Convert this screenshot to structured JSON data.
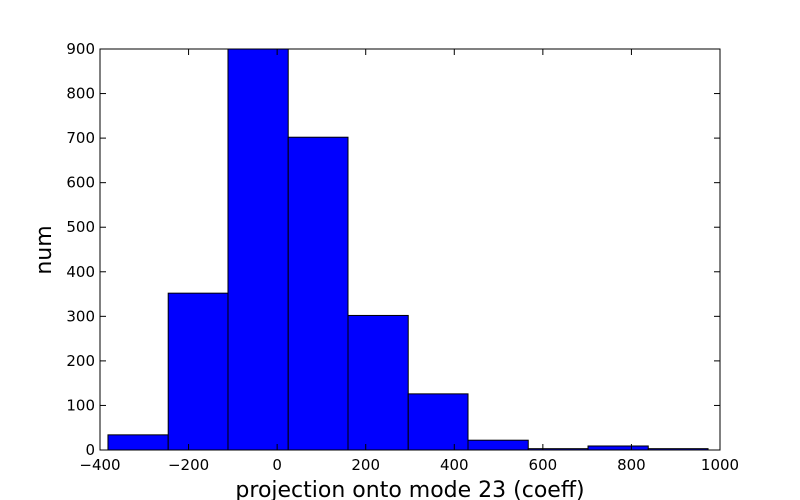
{
  "chart_data": {
    "type": "bar",
    "title": "",
    "xlabel": "projection onto mode 23 (coeff)",
    "ylabel": "num",
    "xlim": [
      -400,
      1000
    ],
    "ylim": [
      0,
      900
    ],
    "xticks": [
      -400,
      -200,
      0,
      200,
      400,
      600,
      800,
      1000
    ],
    "yticks": [
      0,
      100,
      200,
      300,
      400,
      500,
      600,
      700,
      800,
      900
    ],
    "bar_color": "#0000ff",
    "edge_color": "#000000",
    "grid": false,
    "bins": [
      {
        "x0": -382,
        "x1": -246,
        "count": 34
      },
      {
        "x0": -246,
        "x1": -111,
        "count": 352
      },
      {
        "x0": -111,
        "x1": 25,
        "count": 900
      },
      {
        "x0": 25,
        "x1": 160,
        "count": 702
      },
      {
        "x0": 160,
        "x1": 296,
        "count": 302
      },
      {
        "x0": 296,
        "x1": 431,
        "count": 126
      },
      {
        "x0": 431,
        "x1": 567,
        "count": 22
      },
      {
        "x0": 567,
        "x1": 702,
        "count": 3
      },
      {
        "x0": 702,
        "x1": 838,
        "count": 9
      },
      {
        "x0": 838,
        "x1": 973,
        "count": 3
      }
    ]
  }
}
